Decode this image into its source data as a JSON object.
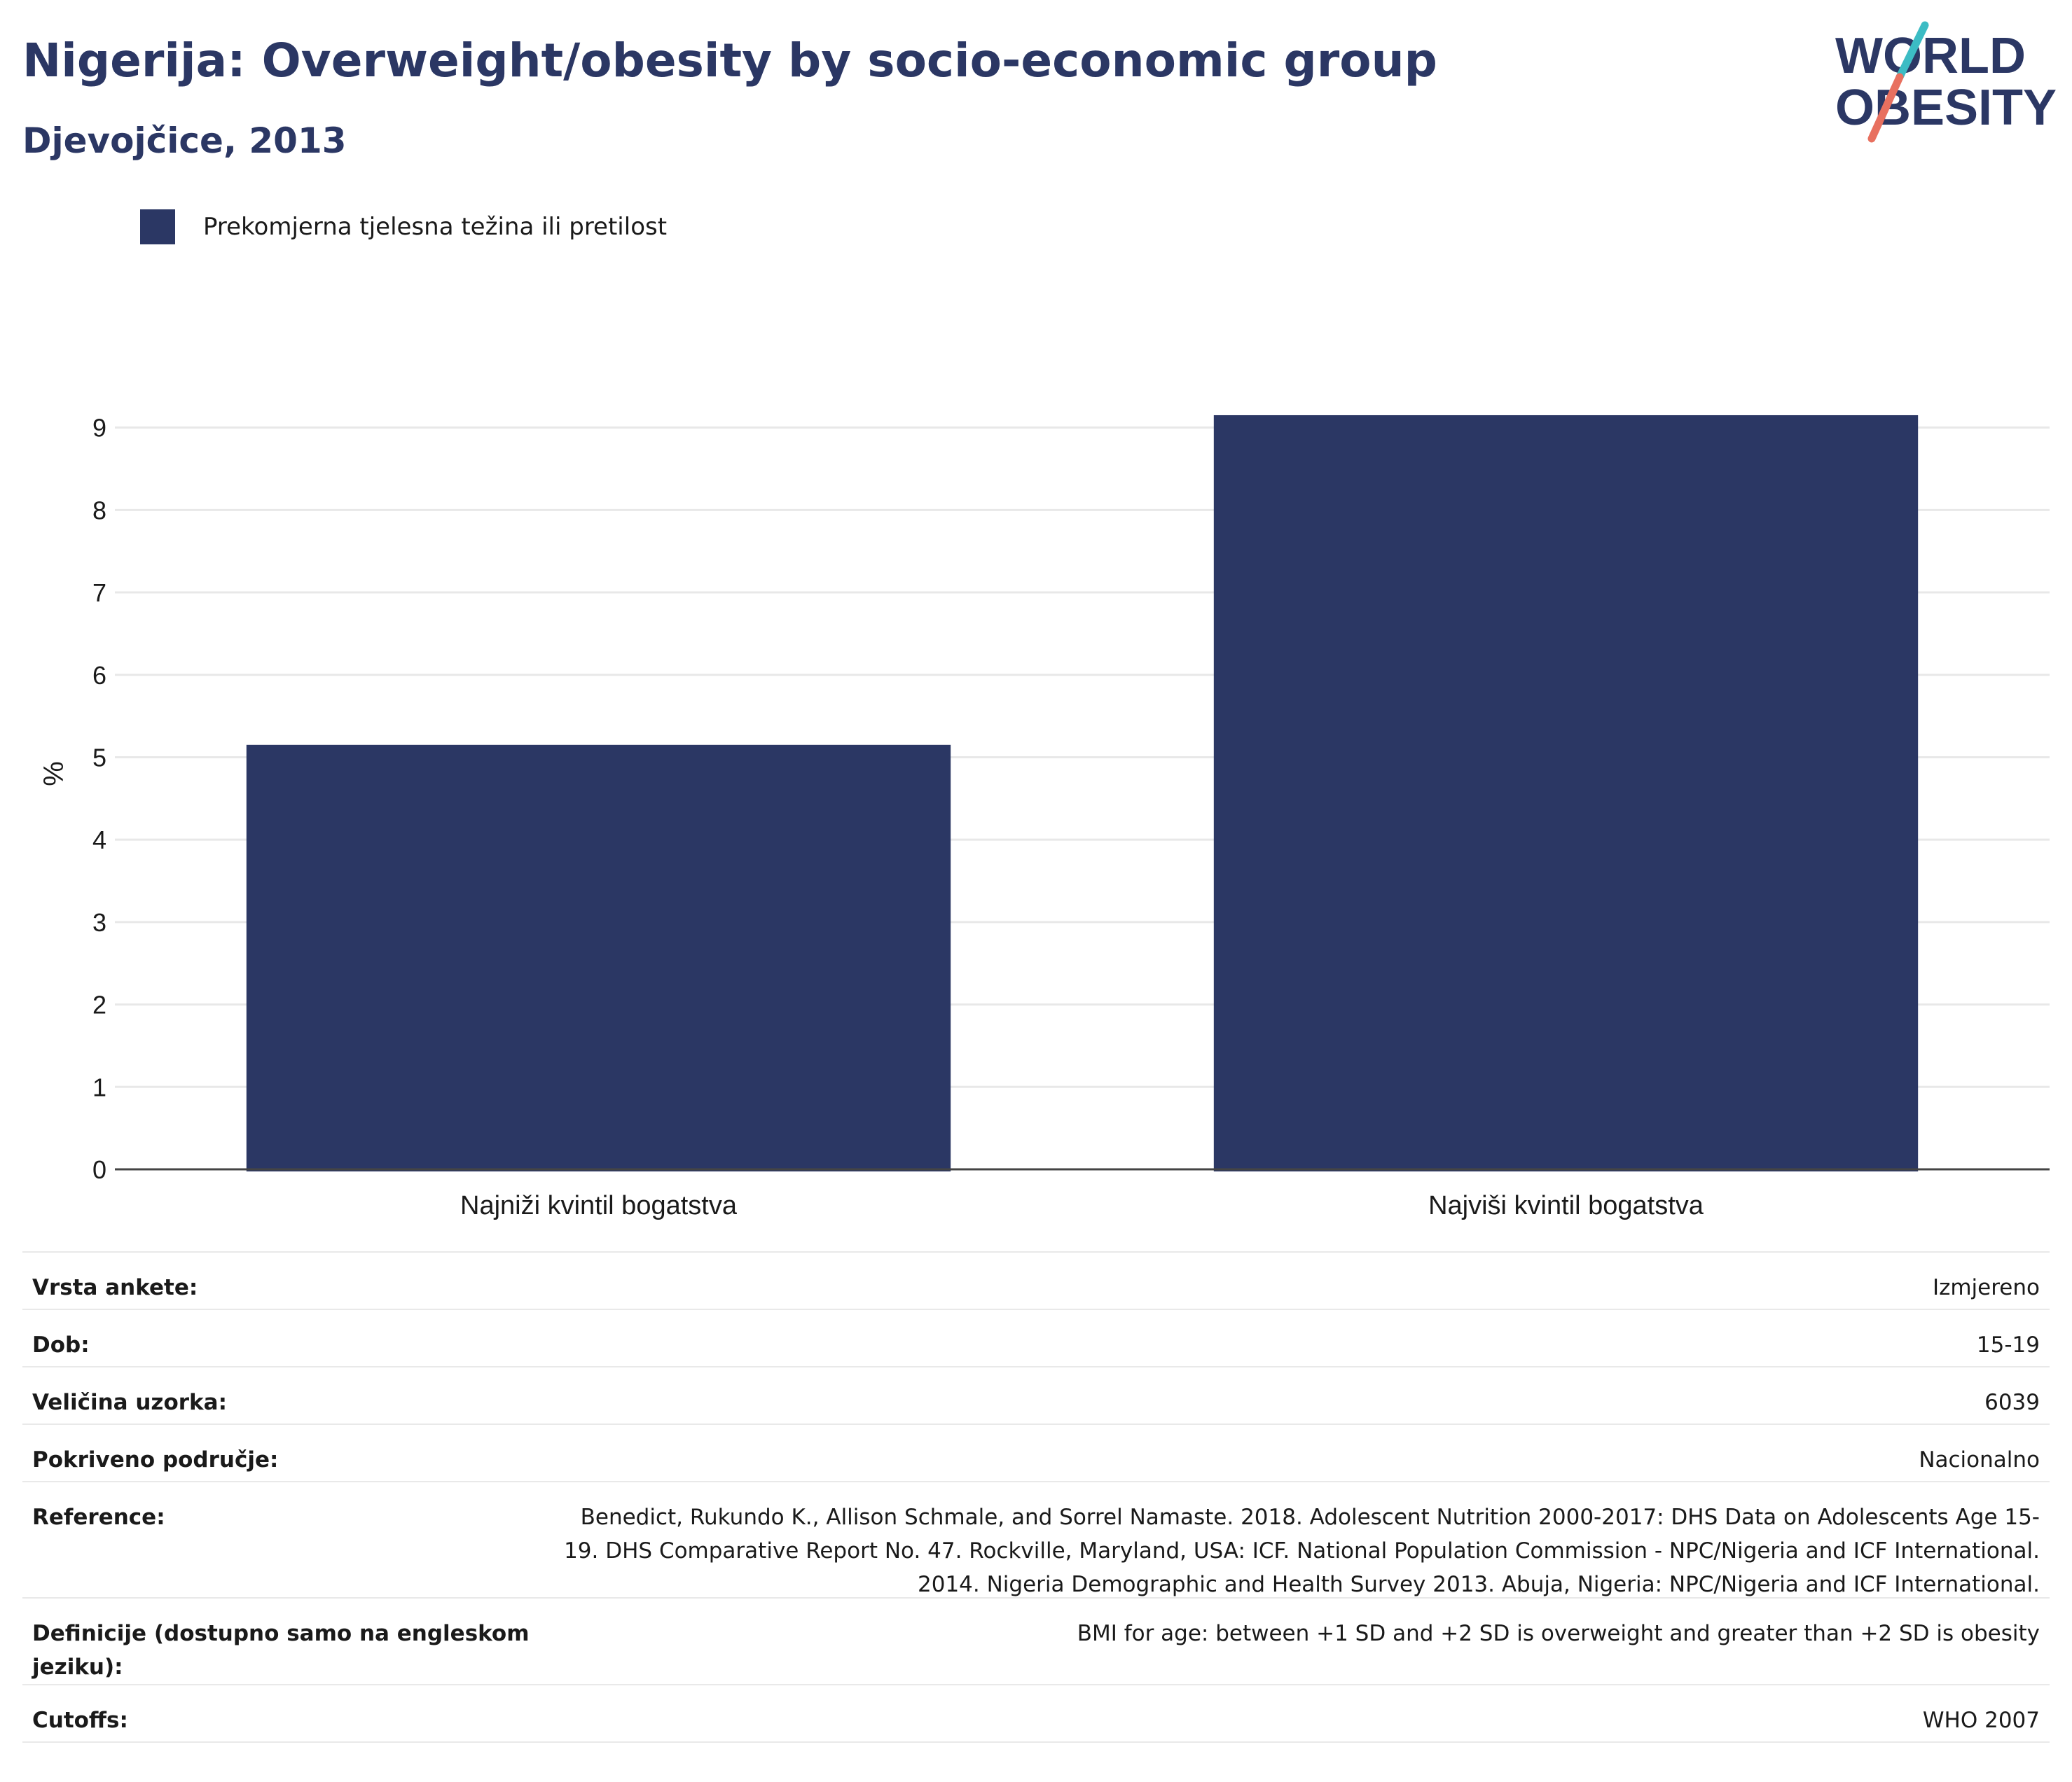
{
  "header": {
    "title": "Nigerija: Overweight/obesity by socio-economic group",
    "subtitle": "Djevojčice, 2013"
  },
  "logo": {
    "line1": "WORLD",
    "line2": "OBESITY",
    "icon": "world-obesity-logo"
  },
  "legend": {
    "label": "Prekomjerna tjelesna težina ili pretilost",
    "color": "#2b3764"
  },
  "chart_data": {
    "type": "bar",
    "categories": [
      "Najniži kvintil bogatstva",
      "Najviši kvintil bogatstva"
    ],
    "series": [
      {
        "name": "Prekomjerna tjelesna težina ili pretilost",
        "values": [
          5.15,
          9.15
        ],
        "color": "#2b3764"
      }
    ],
    "xlabel": "",
    "ylabel": "%",
    "ylim": [
      0,
      9.6
    ],
    "yticks": [
      0,
      1,
      2,
      3,
      4,
      5,
      6,
      7,
      8,
      9
    ],
    "grid": true,
    "legend_position": "top-left"
  },
  "meta": [
    {
      "label": "Vrsta ankete:",
      "value": "Izmjereno"
    },
    {
      "label": "Dob:",
      "value": "15-19"
    },
    {
      "label": "Veličina uzorka:",
      "value": "6039"
    },
    {
      "label": "Pokriveno područje:",
      "value": "Nacionalno"
    },
    {
      "label": "Reference:",
      "value": "Benedict, Rukundo K., Allison Schmale, and Sorrel Namaste. 2018. Adolescent Nutrition 2000-2017: DHS Data on Adolescents Age 15-19. DHS Comparative Report No. 47. Rockville, Maryland, USA: ICF. National Population Commission - NPC/Nigeria and ICF International. 2014. Nigeria Demographic and Health Survey 2013. Abuja, Nigeria: NPC/Nigeria and ICF International."
    },
    {
      "label": "Definicije (dostupno samo na engleskom jeziku):",
      "value": "BMI for age: between +1 SD and +2 SD is overweight and greater than +2 SD is obesity"
    },
    {
      "label": "Cutoffs:",
      "value": "WHO 2007"
    }
  ]
}
